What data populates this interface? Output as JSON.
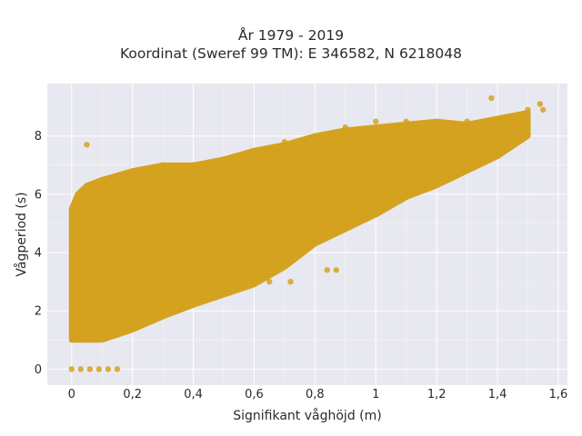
{
  "chart_data": {
    "type": "scatter",
    "title": "År 1979 - 2019",
    "subtitle": "Koordinat (Sweref 99 TM): E 346582, N 6218048",
    "xlabel": "Signifikant våghöjd (m)",
    "ylabel": "Vågperiod (s)",
    "xlim": [
      -0.08,
      1.63
    ],
    "ylim": [
      -0.55,
      9.8
    ],
    "xticks": [
      0,
      0.2,
      0.4,
      0.6,
      0.8,
      1.0,
      1.2,
      1.4,
      1.6
    ],
    "xtick_labels": [
      "0",
      "0,2",
      "0,4",
      "0,6",
      "0,8",
      "1",
      "1,2",
      "1,4",
      "1,6"
    ],
    "yticks": [
      0,
      2,
      4,
      6,
      8
    ],
    "ytick_labels": [
      "0",
      "2",
      "4",
      "6",
      "8"
    ],
    "grid": true,
    "legend": "none",
    "point_color": "#d4a21f",
    "background_color": "#e8e8f0",
    "series": [
      {
        "points": [
          [
            0.0,
            0.0
          ],
          [
            0.03,
            0.0
          ],
          [
            0.06,
            0.0
          ],
          [
            0.09,
            0.0
          ],
          [
            0.12,
            0.0
          ],
          [
            0.15,
            0.0
          ],
          [
            0.01,
            1.2
          ],
          [
            0.02,
            2.0
          ],
          [
            0.01,
            3.5
          ],
          [
            0.02,
            4.8
          ],
          [
            0.03,
            5.8
          ],
          [
            0.05,
            6.3
          ],
          [
            0.06,
            1.2
          ],
          [
            0.1,
            1.6
          ],
          [
            0.15,
            2.0
          ],
          [
            0.2,
            2.5
          ],
          [
            0.3,
            2.3
          ],
          [
            0.4,
            2.9
          ],
          [
            0.05,
            7.7
          ],
          [
            0.08,
            6.2
          ],
          [
            0.1,
            6.3
          ],
          [
            0.15,
            6.5
          ],
          [
            0.2,
            6.8
          ],
          [
            0.3,
            7.0
          ],
          [
            0.4,
            7.0
          ],
          [
            0.5,
            7.2
          ],
          [
            0.6,
            7.5
          ],
          [
            0.7,
            7.8
          ],
          [
            0.8,
            8.0
          ],
          [
            0.9,
            8.3
          ],
          [
            1.0,
            8.5
          ],
          [
            1.1,
            8.5
          ],
          [
            1.2,
            8.5
          ],
          [
            1.3,
            8.5
          ],
          [
            1.38,
            9.3
          ],
          [
            1.45,
            8.6
          ],
          [
            1.5,
            8.9
          ],
          [
            1.54,
            9.1
          ],
          [
            1.55,
            8.9
          ],
          [
            0.84,
            3.4
          ],
          [
            0.87,
            3.4
          ],
          [
            0.72,
            3.0
          ],
          [
            0.65,
            3.0
          ],
          [
            0.55,
            2.9
          ],
          [
            0.5,
            5.0
          ],
          [
            0.7,
            5.5
          ],
          [
            0.9,
            6.5
          ],
          [
            1.1,
            7.0
          ],
          [
            1.2,
            7.0
          ],
          [
            1.3,
            7.5
          ],
          [
            1.4,
            7.8
          ],
          [
            0.35,
            3.3
          ],
          [
            0.45,
            3.8
          ],
          [
            0.55,
            4.0
          ],
          [
            0.6,
            4.6
          ],
          [
            0.75,
            4.8
          ]
        ]
      }
    ],
    "cloud": {
      "lower_edge": [
        [
          0.0,
          1.0
        ],
        [
          0.1,
          1.0
        ],
        [
          0.2,
          1.35
        ],
        [
          0.3,
          1.8
        ],
        [
          0.4,
          2.2
        ],
        [
          0.5,
          2.55
        ],
        [
          0.6,
          2.9
        ],
        [
          0.7,
          3.5
        ],
        [
          0.8,
          4.3
        ],
        [
          0.9,
          4.8
        ],
        [
          1.0,
          5.3
        ],
        [
          1.1,
          5.9
        ],
        [
          1.2,
          6.3
        ],
        [
          1.3,
          6.8
        ],
        [
          1.4,
          7.3
        ],
        [
          1.5,
          8.0
        ]
      ],
      "upper_edge": [
        [
          0.0,
          5.5
        ],
        [
          0.02,
          6.0
        ],
        [
          0.05,
          6.3
        ],
        [
          0.1,
          6.5
        ],
        [
          0.2,
          6.8
        ],
        [
          0.3,
          7.0
        ],
        [
          0.4,
          7.0
        ],
        [
          0.5,
          7.2
        ],
        [
          0.6,
          7.5
        ],
        [
          0.7,
          7.7
        ],
        [
          0.8,
          8.0
        ],
        [
          0.9,
          8.2
        ],
        [
          1.0,
          8.3
        ],
        [
          1.1,
          8.4
        ],
        [
          1.2,
          8.5
        ],
        [
          1.3,
          8.4
        ],
        [
          1.4,
          8.6
        ],
        [
          1.5,
          8.8
        ]
      ]
    }
  }
}
